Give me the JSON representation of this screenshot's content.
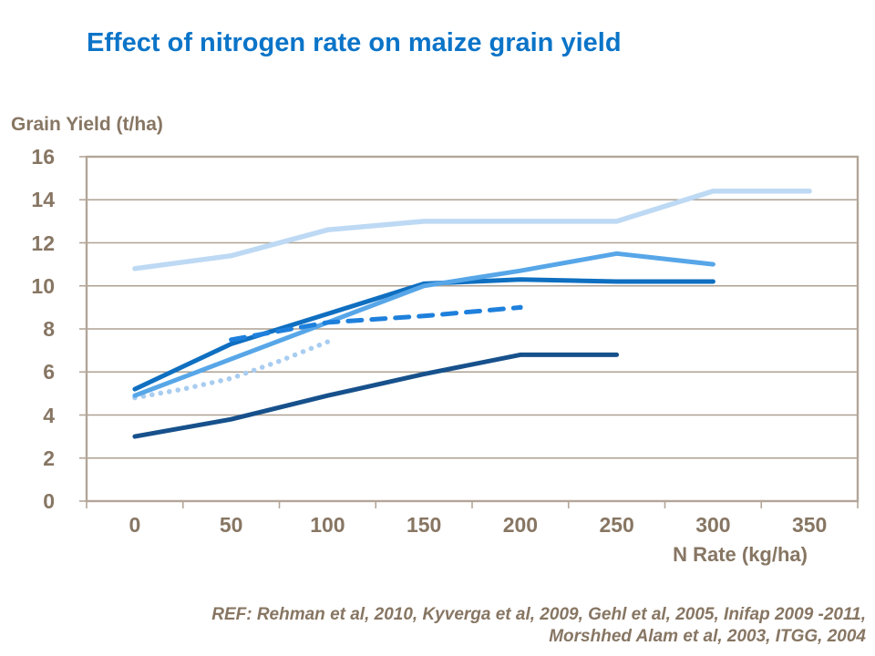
{
  "title": "Effect of nitrogen rate on maize grain yield",
  "axes": {
    "y_title": "Grain Yield (t/ha)",
    "x_title": "N Rate (kg/ha)"
  },
  "reference": {
    "line1": "REF: Rehman et al, 2010, Kyverga et al, 2009, Gehl et al, 2005, Inifap 2009 -2011,",
    "line2": "Morshhed Alam et al, 2003, ITGG, 2004"
  },
  "colors": {
    "title_text": "#0B74C8",
    "axis_text": "#877663",
    "gridline": "#AEA193",
    "frame": "#B3A698",
    "background": "#FFFFFF"
  },
  "chart_data": {
    "type": "line",
    "title": "Effect of nitrogen rate on maize grain yield",
    "xlabel": "N Rate (kg/ha)",
    "ylabel": "Grain Yield (t/ha)",
    "x_ticks": [
      0,
      50,
      100,
      150,
      200,
      250,
      300,
      350
    ],
    "y_ticks": [
      0,
      2,
      4,
      6,
      8,
      10,
      12,
      14,
      16
    ],
    "ylim": [
      0,
      16
    ],
    "xlim": [
      0,
      350
    ],
    "grid": true,
    "legend": false,
    "series": [
      {
        "name": "pale-blue-solid",
        "color": "#BDD9F4",
        "style": "solid",
        "width": 5.5,
        "points": [
          [
            0,
            10.8
          ],
          [
            50,
            11.4
          ],
          [
            100,
            12.6
          ],
          [
            150,
            13.0
          ],
          [
            200,
            13.0
          ],
          [
            250,
            13.0
          ],
          [
            300,
            14.4
          ],
          [
            350,
            14.4
          ]
        ]
      },
      {
        "name": "pale-blue-dotted",
        "color": "#A9CDF0",
        "style": "dotted",
        "width": 5.5,
        "points": [
          [
            0,
            4.8
          ],
          [
            25,
            5.2
          ],
          [
            50,
            5.7
          ],
          [
            75,
            6.5
          ],
          [
            100,
            7.4
          ]
        ]
      },
      {
        "name": "navy-solid",
        "color": "#17518C",
        "style": "solid",
        "width": 5,
        "points": [
          [
            0,
            3.0
          ],
          [
            50,
            3.8
          ],
          [
            100,
            4.9
          ],
          [
            150,
            5.9
          ],
          [
            200,
            6.8
          ],
          [
            250,
            6.8
          ]
        ]
      },
      {
        "name": "medium-blue-solid",
        "color": "#0F6FC0",
        "style": "solid",
        "width": 5,
        "points": [
          [
            0,
            5.2
          ],
          [
            50,
            7.3
          ],
          [
            100,
            8.7
          ],
          [
            150,
            10.1
          ],
          [
            200,
            10.3
          ],
          [
            250,
            10.2
          ],
          [
            300,
            10.2
          ]
        ]
      },
      {
        "name": "sky-blue-solid",
        "color": "#57A6E8",
        "style": "solid",
        "width": 5,
        "points": [
          [
            0,
            4.9
          ],
          [
            50,
            6.6
          ],
          [
            100,
            8.3
          ],
          [
            150,
            10.0
          ],
          [
            200,
            10.7
          ],
          [
            250,
            11.5
          ],
          [
            300,
            11.0
          ]
        ]
      },
      {
        "name": "bright-blue-dashed",
        "color": "#1E80DC",
        "style": "dashed",
        "width": 5,
        "end_dot": true,
        "points": [
          [
            50,
            7.5
          ],
          [
            100,
            8.3
          ],
          [
            150,
            8.6
          ],
          [
            200,
            9.0
          ]
        ]
      }
    ]
  }
}
